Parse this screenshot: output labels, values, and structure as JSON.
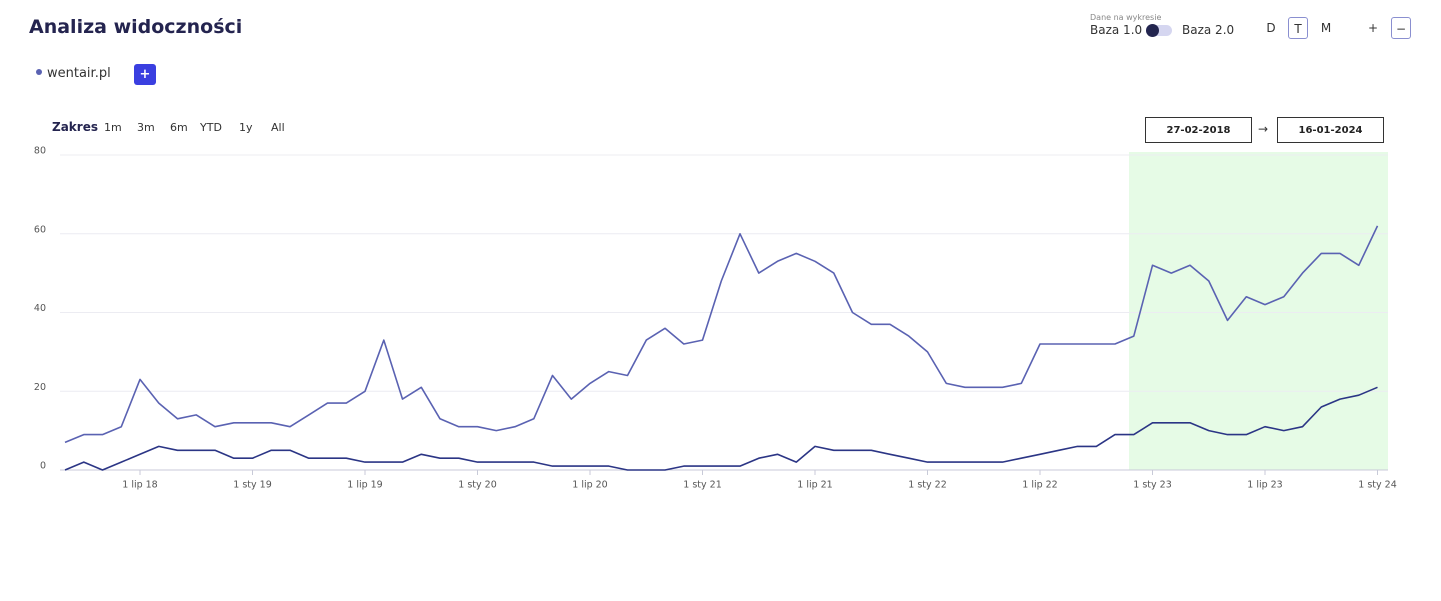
{
  "header": {
    "title": "Analiza widoczności",
    "data_source_label": "Dane na wykresie",
    "base_1": "Baza 1.0",
    "base_2": "Baza 2.0",
    "granularity": [
      "D",
      "T",
      "M"
    ],
    "zoom_in": "+",
    "zoom_out": "−"
  },
  "legend": {
    "domain": "wentair.pl",
    "add_button": "+"
  },
  "range": {
    "label": "Zakres",
    "options": [
      "1m",
      "3m",
      "6m",
      "YTD",
      "1y",
      "All"
    ],
    "from": "27-02-2018",
    "to": "16-01-2024"
  },
  "chart_data": {
    "type": "line",
    "x": [
      null,
      null,
      null,
      null,
      "1 lip 18",
      null,
      null,
      null,
      null,
      null,
      "1 sty 19",
      null,
      null,
      null,
      null,
      null,
      "1 lip 19",
      null,
      null,
      null,
      null,
      null,
      "1 sty 20",
      null,
      null,
      null,
      null,
      null,
      "1 lip 20",
      null,
      null,
      null,
      null,
      null,
      "1 sty 21",
      null,
      null,
      null,
      null,
      null,
      "1 lip 21",
      null,
      null,
      null,
      null,
      null,
      "1 sty 22",
      null,
      null,
      null,
      null,
      null,
      "1 lip 22",
      null,
      null,
      null,
      null,
      null,
      "1 sty 23",
      null,
      null,
      null,
      null,
      null,
      "1 lip 23",
      null,
      null,
      null,
      null,
      null,
      "1 sty 24"
    ],
    "series": [
      {
        "name": "wentair.pl",
        "color": "#5a62b2",
        "values": [
          7,
          9,
          9,
          11,
          23,
          17,
          13,
          14,
          11,
          12,
          12,
          12,
          11,
          14,
          17,
          17,
          20,
          33,
          18,
          21,
          13,
          11,
          11,
          10,
          11,
          13,
          24,
          18,
          22,
          25,
          24,
          33,
          36,
          32,
          33,
          48,
          60,
          50,
          53,
          55,
          53,
          50,
          40,
          37,
          37,
          34,
          30,
          22,
          21,
          21,
          21,
          22,
          32,
          32,
          32,
          32,
          32,
          34,
          52,
          50,
          52,
          48,
          38,
          44,
          42,
          44,
          50,
          55,
          55,
          52,
          62
        ]
      },
      {
        "color": "#2b3585",
        "values": [
          0,
          2,
          0,
          2,
          4,
          6,
          5,
          5,
          5,
          3,
          3,
          5,
          5,
          3,
          3,
          3,
          2,
          2,
          2,
          4,
          3,
          3,
          2,
          2,
          2,
          2,
          1,
          1,
          1,
          1,
          0,
          0,
          0,
          1,
          1,
          1,
          1,
          3,
          4,
          2,
          6,
          5,
          5,
          5,
          4,
          3,
          2,
          2,
          2,
          2,
          2,
          3,
          4,
          5,
          6,
          6,
          9,
          9,
          12,
          12,
          12,
          10,
          9,
          9,
          11,
          10,
          11,
          16,
          18,
          19,
          21
        ]
      }
    ],
    "ylim": [
      0,
      80
    ],
    "yticks": [
      0,
      20,
      40,
      60,
      80
    ],
    "grid": true
  }
}
